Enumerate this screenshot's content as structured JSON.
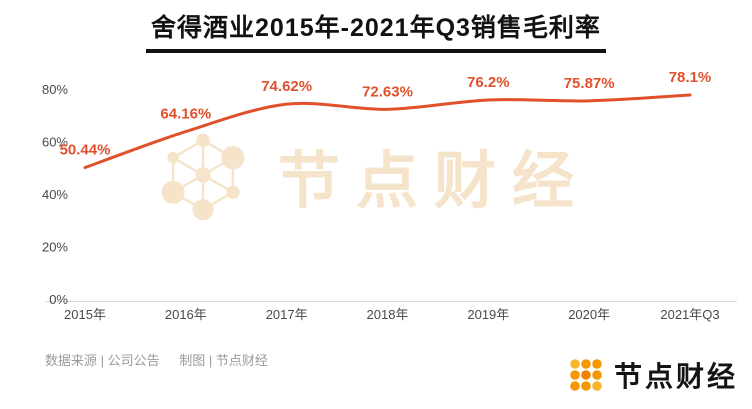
{
  "title": "舍得酒业2015年-2021年Q3销售毛利率",
  "chart_data": {
    "type": "line",
    "title": "舍得酒业2015年-2021年Q3销售毛利率",
    "categories": [
      "2015年",
      "2016年",
      "2017年",
      "2018年",
      "2019年",
      "2020年",
      "2021年Q3"
    ],
    "values": [
      50.44,
      64.16,
      74.62,
      72.63,
      76.2,
      75.87,
      78.1
    ],
    "data_labels": [
      "50.44%",
      "64.16%",
      "74.62%",
      "72.63%",
      "76.2%",
      "75.87%",
      "78.1%"
    ],
    "y_ticks": [
      0,
      20,
      40,
      60,
      80
    ],
    "y_tick_labels": [
      "0%",
      "20%",
      "40%",
      "60%",
      "80%"
    ],
    "ylim": [
      0,
      100
    ],
    "grid": false,
    "legend": "none",
    "line_color": "#E0512B",
    "label_color": "#E0512B",
    "axis_text_color": "#4A4A4A",
    "axis_line_color": "#DADADA"
  },
  "watermark": {
    "text": "节点财经",
    "color": "#F5E4CA"
  },
  "footer": {
    "source": "数据来源 | 公司公告",
    "credit": "制图 | 节点财经"
  },
  "brand": {
    "text": "节点财经",
    "dot_colors": [
      "#F8B62D",
      "#F39800",
      "#F39800",
      "#F39800",
      "#EF8200",
      "#F39800",
      "#F39800",
      "#F39800",
      "#F8B62D"
    ]
  }
}
